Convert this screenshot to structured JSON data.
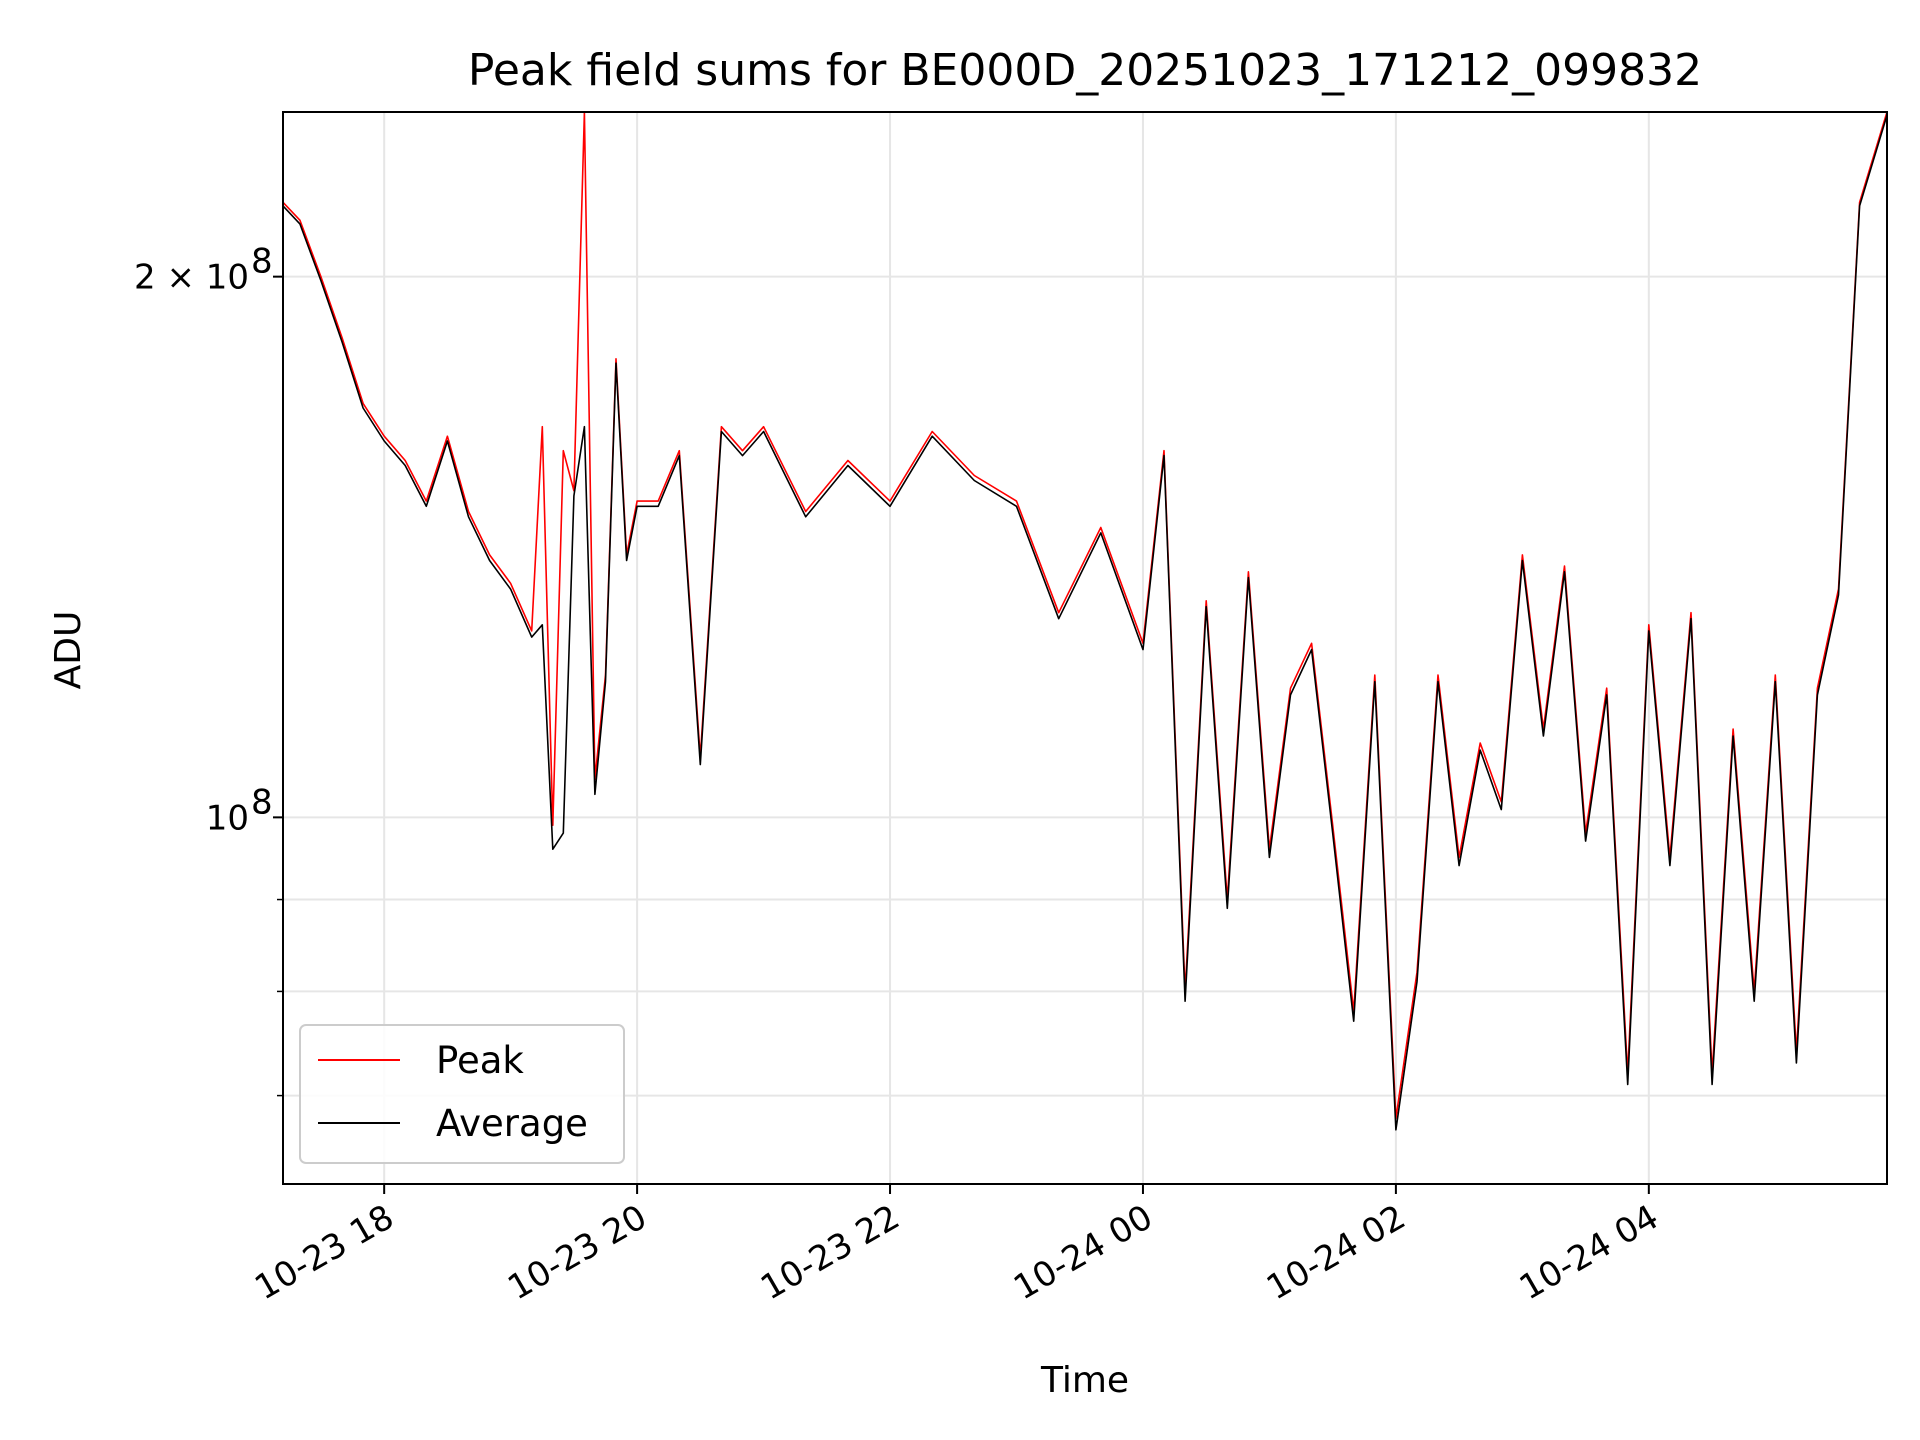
{
  "chart_data": {
    "type": "line",
    "title": "Peak field sums for BE000D_20251023_171212_099832",
    "xlabel": "Time",
    "ylabel": "ADU",
    "yscale": "log",
    "ylim": [
      62500000,
      247000000
    ],
    "xlim": [
      "2025-10-23 17:12",
      "2025-10-24 05:53"
    ],
    "grid": true,
    "legend_position": "lower-left",
    "x_ticks": [
      {
        "value": "2025-10-23 18:00",
        "label": "10-23 18"
      },
      {
        "value": "2025-10-23 20:00",
        "label": "10-23 20"
      },
      {
        "value": "2025-10-23 22:00",
        "label": "10-23 22"
      },
      {
        "value": "2025-10-24 00:00",
        "label": "10-24 00"
      },
      {
        "value": "2025-10-24 02:00",
        "label": "10-24 02"
      },
      {
        "value": "2025-10-24 04:00",
        "label": "10-24 04"
      }
    ],
    "y_major_ticks": [
      {
        "value": 100000000,
        "label": "10",
        "exponent": "8",
        "prefix": ""
      },
      {
        "value": 200000000,
        "label": "2 × 10",
        "exponent": "8",
        "prefix": "2×"
      }
    ],
    "y_minor_ticks": [
      70000000,
      80000000,
      90000000
    ],
    "series": [
      {
        "name": "Peak",
        "color": "#ff0000",
        "x": [
          "2025-10-23 17:12",
          "2025-10-23 17:20",
          "2025-10-23 17:30",
          "2025-10-23 17:40",
          "2025-10-23 17:50",
          "2025-10-23 18:00",
          "2025-10-23 18:10",
          "2025-10-23 18:20",
          "2025-10-23 18:30",
          "2025-10-23 18:40",
          "2025-10-23 18:50",
          "2025-10-23 19:00",
          "2025-10-23 19:10",
          "2025-10-23 19:15",
          "2025-10-23 19:20",
          "2025-10-23 19:25",
          "2025-10-23 19:30",
          "2025-10-23 19:35",
          "2025-10-23 19:40",
          "2025-10-23 19:45",
          "2025-10-23 19:50",
          "2025-10-23 19:55",
          "2025-10-23 20:00",
          "2025-10-23 20:10",
          "2025-10-23 20:20",
          "2025-10-23 20:30",
          "2025-10-23 20:40",
          "2025-10-23 20:50",
          "2025-10-23 21:00",
          "2025-10-23 21:20",
          "2025-10-23 21:40",
          "2025-10-23 22:00",
          "2025-10-23 22:20",
          "2025-10-23 22:40",
          "2025-10-23 23:00",
          "2025-10-23 23:20",
          "2025-10-23 23:40",
          "2025-10-24 00:00",
          "2025-10-24 00:10",
          "2025-10-24 00:20",
          "2025-10-24 00:30",
          "2025-10-24 00:40",
          "2025-10-24 00:50",
          "2025-10-24 01:00",
          "2025-10-24 01:10",
          "2025-10-24 01:20",
          "2025-10-24 01:30",
          "2025-10-24 01:40",
          "2025-10-24 01:50",
          "2025-10-24 02:00",
          "2025-10-24 02:10",
          "2025-10-24 02:20",
          "2025-10-24 02:30",
          "2025-10-24 02:40",
          "2025-10-24 02:50",
          "2025-10-24 03:00",
          "2025-10-24 03:10",
          "2025-10-24 03:20",
          "2025-10-24 03:30",
          "2025-10-24 03:40",
          "2025-10-24 03:50",
          "2025-10-24 04:00",
          "2025-10-24 04:10",
          "2025-10-24 04:20",
          "2025-10-24 04:30",
          "2025-10-24 04:40",
          "2025-10-24 04:50",
          "2025-10-24 05:00",
          "2025-10-24 05:10",
          "2025-10-24 05:20",
          "2025-10-24 05:30",
          "2025-10-24 05:40",
          "2025-10-24 05:53"
        ],
        "y": [
          220000000,
          215000000,
          200000000,
          185000000,
          170000000,
          163000000,
          158000000,
          150000000,
          163000000,
          148000000,
          140000000,
          135000000,
          127000000,
          165000000,
          99000000,
          160000000,
          152000000,
          247000000,
          105000000,
          120000000,
          180000000,
          140000000,
          150000000,
          150000000,
          160000000,
          108000000,
          165000000,
          160000000,
          165000000,
          148000000,
          158000000,
          150000000,
          164000000,
          155000000,
          150000000,
          130000000,
          145000000,
          125000000,
          160000000,
          80000000,
          132000000,
          90000000,
          137000000,
          96000000,
          118000000,
          125000000,
          99000000,
          78000000,
          120000000,
          68000000,
          82000000,
          120000000,
          95000000,
          110000000,
          102000000,
          140000000,
          112000000,
          138000000,
          98000000,
          118000000,
          72000000,
          128000000,
          95000000,
          130000000,
          72000000,
          112000000,
          80000000,
          120000000,
          74000000,
          118000000,
          134000000,
          220000000,
          247000000
        ]
      },
      {
        "name": "Average",
        "color": "#000000",
        "x": [
          "2025-10-23 17:12",
          "2025-10-23 17:20",
          "2025-10-23 17:30",
          "2025-10-23 17:40",
          "2025-10-23 17:50",
          "2025-10-23 18:00",
          "2025-10-23 18:10",
          "2025-10-23 18:20",
          "2025-10-23 18:30",
          "2025-10-23 18:40",
          "2025-10-23 18:50",
          "2025-10-23 19:00",
          "2025-10-23 19:10",
          "2025-10-23 19:15",
          "2025-10-23 19:20",
          "2025-10-23 19:25",
          "2025-10-23 19:30",
          "2025-10-23 19:35",
          "2025-10-23 19:40",
          "2025-10-23 19:45",
          "2025-10-23 19:50",
          "2025-10-23 19:55",
          "2025-10-23 20:00",
          "2025-10-23 20:10",
          "2025-10-23 20:20",
          "2025-10-23 20:30",
          "2025-10-23 20:40",
          "2025-10-23 20:50",
          "2025-10-23 21:00",
          "2025-10-23 21:20",
          "2025-10-23 21:40",
          "2025-10-23 22:00",
          "2025-10-23 22:20",
          "2025-10-23 22:40",
          "2025-10-23 23:00",
          "2025-10-23 23:20",
          "2025-10-23 23:40",
          "2025-10-24 00:00",
          "2025-10-24 00:10",
          "2025-10-24 00:20",
          "2025-10-24 00:30",
          "2025-10-24 00:40",
          "2025-10-24 00:50",
          "2025-10-24 01:00",
          "2025-10-24 01:10",
          "2025-10-24 01:20",
          "2025-10-24 01:30",
          "2025-10-24 01:40",
          "2025-10-24 01:50",
          "2025-10-24 02:00",
          "2025-10-24 02:10",
          "2025-10-24 02:20",
          "2025-10-24 02:30",
          "2025-10-24 02:40",
          "2025-10-24 02:50",
          "2025-10-24 03:00",
          "2025-10-24 03:10",
          "2025-10-24 03:20",
          "2025-10-24 03:30",
          "2025-10-24 03:40",
          "2025-10-24 03:50",
          "2025-10-24 04:00",
          "2025-10-24 04:10",
          "2025-10-24 04:20",
          "2025-10-24 04:30",
          "2025-10-24 04:40",
          "2025-10-24 04:50",
          "2025-10-24 05:00",
          "2025-10-24 05:10",
          "2025-10-24 05:20",
          "2025-10-24 05:30",
          "2025-10-24 05:40",
          "2025-10-24 05:53"
        ],
        "y": [
          219000000,
          214000000,
          199000000,
          184000000,
          169000000,
          162000000,
          157000000,
          149000000,
          162000000,
          147000000,
          139000000,
          134000000,
          126000000,
          128000000,
          96000000,
          98000000,
          151000000,
          165000000,
          103000000,
          119000000,
          179000000,
          139000000,
          149000000,
          149000000,
          159000000,
          107000000,
          164000000,
          159000000,
          164000000,
          147000000,
          157000000,
          149000000,
          163000000,
          154000000,
          149000000,
          129000000,
          144000000,
          124000000,
          159000000,
          79000000,
          131000000,
          89000000,
          136000000,
          95000000,
          117000000,
          124000000,
          98000000,
          77000000,
          119000000,
          67000000,
          81000000,
          119000000,
          94000000,
          109000000,
          101000000,
          139000000,
          111000000,
          137000000,
          97000000,
          117000000,
          71000000,
          127000000,
          94000000,
          129000000,
          71000000,
          111000000,
          79000000,
          119000000,
          73000000,
          117000000,
          133000000,
          219000000,
          246000000
        ]
      }
    ]
  }
}
